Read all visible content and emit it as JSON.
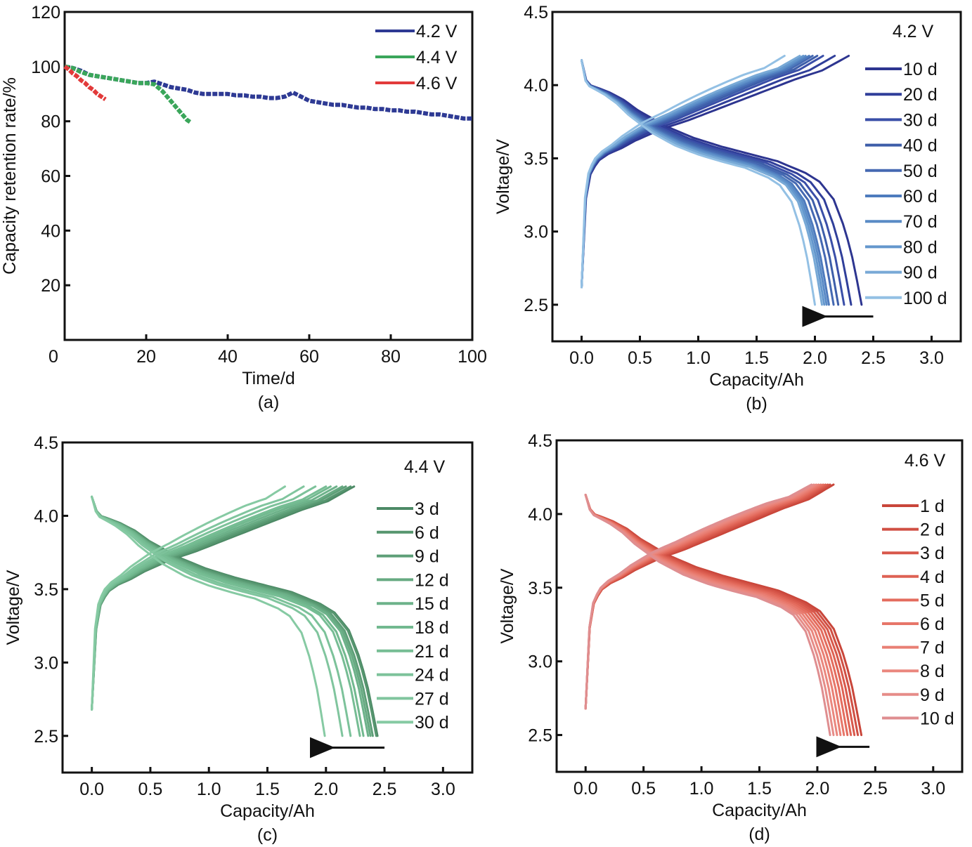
{
  "chart_data": [
    {
      "id": "a",
      "type": "line",
      "panel_label": "(a)",
      "title": "",
      "xlabel": "Time/d",
      "ylabel": "Capacity retention rate/%",
      "xlim": [
        0,
        100
      ],
      "ylim": [
        0,
        120
      ],
      "xticks": [
        0,
        20,
        40,
        60,
        80,
        100
      ],
      "yticks": [
        20,
        40,
        60,
        80,
        100,
        120
      ],
      "xtick_labels": [
        "0",
        "20",
        "40",
        "60",
        "80",
        "100"
      ],
      "ytick_labels": [
        "20",
        "40",
        "60",
        "80",
        "100",
        "120"
      ],
      "grid": false,
      "legend_position": "top-right",
      "series": [
        {
          "name": "4.2 V",
          "color": "#2e3a94",
          "x": [
            0,
            2,
            4,
            6,
            8,
            10,
            12,
            14,
            16,
            18,
            20,
            22,
            24,
            26,
            28,
            30,
            32,
            34,
            36,
            38,
            40,
            42,
            44,
            46,
            48,
            50,
            52,
            54,
            56,
            58,
            60,
            62,
            64,
            66,
            68,
            70,
            72,
            74,
            76,
            78,
            80,
            82,
            84,
            86,
            88,
            90,
            92,
            94,
            96,
            98,
            100
          ],
          "y": [
            100,
            99.5,
            98.5,
            97,
            96.5,
            96,
            95.5,
            95,
            94.5,
            94,
            94,
            94.5,
            93.5,
            92.5,
            92,
            91.5,
            90.5,
            90,
            90,
            90,
            90,
            89.5,
            89.5,
            89,
            89,
            88.5,
            88.5,
            89,
            90.5,
            89,
            87.5,
            87,
            86.5,
            86,
            86,
            85.5,
            85,
            85,
            84.5,
            84.5,
            84,
            84,
            83.5,
            83.5,
            83,
            82.5,
            82.5,
            82,
            81.5,
            81,
            81
          ]
        },
        {
          "name": "4.4 V",
          "color": "#3aa65a",
          "x": [
            0,
            2,
            4,
            6,
            8,
            10,
            12,
            14,
            16,
            18,
            20,
            22,
            24,
            26,
            28,
            30,
            31
          ],
          "y": [
            100,
            99.5,
            98,
            97,
            96.5,
            96,
            95.5,
            95,
            94.5,
            94,
            94,
            93.5,
            91,
            87.5,
            84,
            80.5,
            79.5
          ]
        },
        {
          "name": "4.6 V",
          "color": "#e23a3a",
          "x": [
            0,
            1,
            2,
            3,
            4,
            5,
            6,
            7,
            8,
            9,
            10
          ],
          "y": [
            100,
            99,
            97.5,
            96.5,
            95,
            94,
            92.5,
            91.5,
            90,
            89,
            88
          ]
        }
      ]
    },
    {
      "id": "b",
      "type": "line",
      "panel_label": "(b)",
      "title": "",
      "annotation": "4.2 V",
      "xlabel": "Capacity/Ah",
      "ylabel": "Voltage/V",
      "xlim": [
        -0.25,
        3.25
      ],
      "ylim": [
        2.25,
        4.5
      ],
      "xticks": [
        0,
        0.5,
        1.0,
        1.5,
        2.0,
        2.5,
        3.0
      ],
      "yticks": [
        2.5,
        3.0,
        3.5,
        4.0,
        4.5
      ],
      "xtick_labels": [
        "0.0",
        "0.5",
        "1.0",
        "1.5",
        "2.0",
        "2.5",
        "3.0"
      ],
      "ytick_labels": [
        "2.5",
        "3.0",
        "3.5",
        "4.0",
        "4.5"
      ],
      "grid": false,
      "legend_position": "right",
      "arrow": {
        "from_x": 2.5,
        "to_x": 2.0,
        "y": 2.42,
        "meaning": "capacity fade direction"
      },
      "charge_start_voltage": 2.62,
      "discharge_start_voltage": 4.17,
      "charge_end_voltage": 4.2,
      "discharge_end_voltage": 2.5,
      "series": [
        {
          "name": "10 d",
          "color": "#2d3590",
          "charge_end_ah": 2.29,
          "discharge_end_ah": 2.4
        },
        {
          "name": "20 d",
          "color": "#303f9a",
          "charge_end_ah": 2.17,
          "discharge_end_ah": 2.31
        },
        {
          "name": "30 d",
          "color": "#3a4fa8",
          "charge_end_ah": 2.07,
          "discharge_end_ah": 2.25
        },
        {
          "name": "40 d",
          "color": "#3d5ea9",
          "charge_end_ah": 2.02,
          "discharge_end_ah": 2.2
        },
        {
          "name": "50 d",
          "color": "#4569b2",
          "charge_end_ah": 1.98,
          "discharge_end_ah": 2.16
        },
        {
          "name": "60 d",
          "color": "#4e7bbd",
          "charge_end_ah": 1.95,
          "discharge_end_ah": 2.12
        },
        {
          "name": "70 d",
          "color": "#5a8bc6",
          "charge_end_ah": 1.92,
          "discharge_end_ah": 2.1
        },
        {
          "name": "80 d",
          "color": "#6497cd",
          "charge_end_ah": 1.9,
          "discharge_end_ah": 2.08
        },
        {
          "name": "90 d",
          "color": "#78a9d6",
          "charge_end_ah": 1.87,
          "discharge_end_ah": 2.06
        },
        {
          "name": "100 d",
          "color": "#93c0e4",
          "charge_end_ah": 1.74,
          "discharge_end_ah": 2.0
        }
      ]
    },
    {
      "id": "c",
      "type": "line",
      "panel_label": "(c)",
      "title": "",
      "annotation": "4.4 V",
      "xlabel": "Capacity/Ah",
      "ylabel": "Voltage/V",
      "xlim": [
        -0.25,
        3.25
      ],
      "ylim": [
        2.25,
        4.5
      ],
      "xticks": [
        0,
        0.5,
        1.0,
        1.5,
        2.0,
        2.5,
        3.0
      ],
      "yticks": [
        2.5,
        3.0,
        3.5,
        4.0,
        4.5
      ],
      "xtick_labels": [
        "0.0",
        "0.5",
        "1.0",
        "1.5",
        "2.0",
        "2.5",
        "3.0"
      ],
      "ytick_labels": [
        "2.5",
        "3.0",
        "3.5",
        "4.0",
        "4.5"
      ],
      "grid": false,
      "legend_position": "right",
      "arrow": {
        "from_x": 2.5,
        "to_x": 1.97,
        "y": 2.42,
        "meaning": "capacity fade direction"
      },
      "charge_start_voltage": 2.68,
      "discharge_start_voltage": 4.13,
      "charge_end_voltage": 4.2,
      "discharge_end_voltage": 2.5,
      "series": [
        {
          "name": "3 d",
          "color": "#4d8a66",
          "charge_end_ah": 2.24,
          "discharge_end_ah": 2.44
        },
        {
          "name": "6 d",
          "color": "#56966f",
          "charge_end_ah": 2.21,
          "discharge_end_ah": 2.43
        },
        {
          "name": "9 d",
          "color": "#5e9f78",
          "charge_end_ah": 2.17,
          "discharge_end_ah": 2.4
        },
        {
          "name": "12 d",
          "color": "#67aa82",
          "charge_end_ah": 2.14,
          "discharge_end_ah": 2.38
        },
        {
          "name": "15 d",
          "color": "#6db28a",
          "charge_end_ah": 2.09,
          "discharge_end_ah": 2.36
        },
        {
          "name": "18 d",
          "color": "#72b98f",
          "charge_end_ah": 2.04,
          "discharge_end_ah": 2.32
        },
        {
          "name": "21 d",
          "color": "#76bd94",
          "charge_end_ah": 2.0,
          "discharge_end_ah": 2.29
        },
        {
          "name": "24 d",
          "color": "#7cc29a",
          "charge_end_ah": 1.91,
          "discharge_end_ah": 2.21
        },
        {
          "name": "27 d",
          "color": "#80c59e",
          "charge_end_ah": 1.81,
          "discharge_end_ah": 2.14
        },
        {
          "name": "30 d",
          "color": "#86caa3",
          "charge_end_ah": 1.65,
          "discharge_end_ah": 1.99
        }
      ]
    },
    {
      "id": "d",
      "type": "line",
      "panel_label": "(d)",
      "title": "",
      "annotation": "4.6 V",
      "xlabel": "Capacity/Ah",
      "ylabel": "Voltage/V",
      "xlim": [
        -0.25,
        3.25
      ],
      "ylim": [
        2.25,
        4.5
      ],
      "xticks": [
        0,
        0.5,
        1.0,
        1.5,
        2.0,
        2.5,
        3.0
      ],
      "yticks": [
        2.5,
        3.0,
        3.5,
        4.0,
        4.5
      ],
      "xtick_labels": [
        "0.0",
        "0.5",
        "1.0",
        "1.5",
        "2.0",
        "2.5",
        "3.0"
      ],
      "ytick_labels": [
        "2.5",
        "3.0",
        "3.5",
        "4.0",
        "4.5"
      ],
      "grid": false,
      "legend_position": "right",
      "arrow": {
        "from_x": 2.45,
        "to_x": 2.1,
        "y": 2.42,
        "meaning": "capacity fade direction"
      },
      "charge_start_voltage": 2.68,
      "discharge_start_voltage": 4.13,
      "charge_end_voltage": 4.2,
      "discharge_end_voltage": 2.5,
      "series": [
        {
          "name": "1 d",
          "color": "#c9463a",
          "charge_end_ah": 2.14,
          "discharge_end_ah": 2.38
        },
        {
          "name": "2 d",
          "color": "#d04f43",
          "charge_end_ah": 2.11,
          "discharge_end_ah": 2.35
        },
        {
          "name": "3 d",
          "color": "#d8584b",
          "charge_end_ah": 2.09,
          "discharge_end_ah": 2.32
        },
        {
          "name": "4 d",
          "color": "#de6254",
          "charge_end_ah": 2.07,
          "discharge_end_ah": 2.29
        },
        {
          "name": "5 d",
          "color": "#e46c5e",
          "charge_end_ah": 2.05,
          "discharge_end_ah": 2.26
        },
        {
          "name": "6 d",
          "color": "#e77669",
          "charge_end_ah": 2.03,
          "discharge_end_ah": 2.23
        },
        {
          "name": "7 d",
          "color": "#e97f74",
          "charge_end_ah": 2.01,
          "discharge_end_ah": 2.2
        },
        {
          "name": "8 d",
          "color": "#ea877e",
          "charge_end_ah": 1.99,
          "discharge_end_ah": 2.17
        },
        {
          "name": "9 d",
          "color": "#e68c88",
          "charge_end_ah": 1.97,
          "discharge_end_ah": 2.14
        },
        {
          "name": "10 d",
          "color": "#df8e90",
          "charge_end_ah": 1.95,
          "discharge_end_ah": 2.11
        }
      ]
    }
  ],
  "profile_template": {
    "fraction": [
      0.0,
      0.01,
      0.03,
      0.06,
      0.1,
      0.15,
      0.2,
      0.3,
      0.4,
      0.5,
      0.6,
      0.7,
      0.8,
      0.85,
      0.9,
      0.94,
      0.97,
      1.0
    ],
    "charge_voltage": [
      2.65,
      3.15,
      3.38,
      3.48,
      3.53,
      3.57,
      3.62,
      3.7,
      3.76,
      3.83,
      3.9,
      3.97,
      4.04,
      4.07,
      4.1,
      4.14,
      4.17,
      4.2
    ],
    "discharge_voltage": [
      4.15,
      4.05,
      4.0,
      3.98,
      3.95,
      3.9,
      3.83,
      3.72,
      3.64,
      3.58,
      3.53,
      3.48,
      3.4,
      3.34,
      3.22,
      3.02,
      2.8,
      2.5
    ]
  }
}
